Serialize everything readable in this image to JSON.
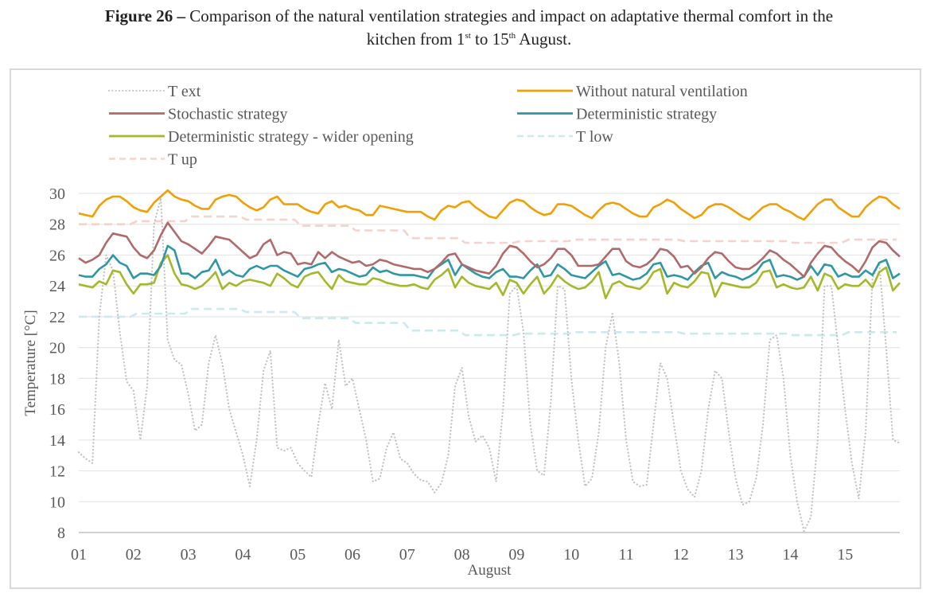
{
  "caption": {
    "label": "Figure 26 –",
    "text_before_1": " Comparison of the natural ventilation strategies and impact on adaptative thermal comfort in the",
    "line2_a": "kitchen from 1",
    "sup1": "st",
    "line2_b": " to 15",
    "sup2": "th",
    "line2_c": " August."
  },
  "chart_data": {
    "type": "line",
    "title": "Comparison of the natural ventilation strategies and impact on adaptative thermal comfort in the kitchen from 1st to 15th August.",
    "xlabel": "August",
    "ylabel": "Temperature [°C]",
    "ylim": [
      8,
      30
    ],
    "yticks": [
      "8",
      "10",
      "12",
      "14",
      "16",
      "18",
      "20",
      "22",
      "24",
      "26",
      "28",
      "30"
    ],
    "xlim_days": [
      1,
      16
    ],
    "xticks": [
      "01",
      "02",
      "03",
      "04",
      "05",
      "06",
      "07",
      "08",
      "09",
      "10",
      "11",
      "12",
      "13",
      "14",
      "15"
    ],
    "grid": true,
    "legend_position": "top",
    "sample_interval_hours": 3,
    "series": [
      {
        "name": "T ext",
        "color": "#bfbfbf",
        "style": "dotted",
        "values": [
          13.2,
          12.8,
          12.5,
          22.0,
          26.0,
          25.0,
          21.0,
          17.8,
          17.2,
          14.0,
          17.5,
          28.0,
          29.7,
          20.5,
          19.2,
          18.9,
          17.0,
          14.6,
          15.0,
          19.0,
          20.8,
          18.9,
          16.0,
          14.5,
          13.0,
          11.0,
          14.0,
          18.5,
          19.8,
          13.5,
          13.3,
          13.5,
          12.5,
          12.0,
          11.6,
          15.0,
          17.7,
          16.0,
          20.5,
          17.5,
          18.0,
          16.0,
          14.0,
          11.3,
          11.5,
          13.5,
          14.5,
          12.8,
          12.5,
          11.8,
          11.4,
          11.3,
          10.6,
          11.2,
          13.0,
          17.5,
          18.7,
          15.5,
          13.9,
          14.3,
          13.5,
          11.3,
          16.0,
          23.5,
          24.0,
          21.0,
          15.0,
          12.0,
          11.7,
          16.5,
          24.0,
          23.8,
          18.0,
          14.0,
          11.0,
          11.5,
          14.5,
          20.0,
          22.2,
          19.0,
          14.0,
          11.3,
          11.0,
          11.1,
          15.0,
          19.0,
          18.0,
          15.0,
          12.0,
          10.8,
          10.3,
          12.0,
          16.0,
          18.5,
          18.0,
          14.5,
          11.5,
          9.8,
          10.0,
          11.5,
          15.0,
          20.5,
          20.8,
          18.0,
          13.0,
          10.0,
          8.1,
          9.0,
          14.0,
          24.0,
          24.0,
          20.0,
          16.0,
          12.5,
          10.2,
          14.5,
          24.5,
          25.5,
          20.0,
          14.0,
          13.8
        ]
      },
      {
        "name": "Without natural ventilation",
        "color": "#f29f05",
        "style": "solid",
        "values": [
          28.7,
          28.6,
          28.5,
          29.2,
          29.6,
          29.8,
          29.8,
          29.5,
          29.1,
          28.9,
          28.8,
          29.4,
          29.8,
          30.2,
          29.8,
          29.6,
          29.5,
          29.2,
          29.0,
          29.0,
          29.6,
          29.8,
          29.9,
          29.8,
          29.4,
          29.1,
          28.9,
          29.1,
          29.6,
          29.8,
          29.3,
          29.3,
          29.3,
          29.0,
          28.8,
          28.7,
          29.3,
          29.5,
          29.1,
          29.2,
          29.0,
          28.9,
          28.6,
          28.6,
          29.2,
          29.1,
          29.0,
          28.9,
          28.8,
          28.8,
          28.8,
          28.5,
          28.3,
          28.9,
          29.2,
          29.1,
          29.4,
          29.5,
          29.1,
          28.8,
          28.5,
          28.4,
          28.9,
          29.4,
          29.6,
          29.5,
          29.1,
          28.8,
          28.6,
          28.7,
          29.3,
          29.3,
          29.2,
          28.9,
          28.6,
          28.4,
          28.9,
          29.3,
          29.4,
          29.3,
          29.0,
          28.7,
          28.5,
          28.5,
          29.1,
          29.3,
          29.6,
          29.4,
          29.0,
          28.7,
          28.4,
          28.6,
          29.1,
          29.3,
          29.3,
          29.1,
          28.8,
          28.5,
          28.3,
          28.7,
          29.1,
          29.3,
          29.3,
          29.0,
          28.8,
          28.5,
          28.3,
          28.8,
          29.3,
          29.6,
          29.6,
          29.1,
          28.8,
          28.5,
          28.5,
          29.1,
          29.5,
          29.8,
          29.7,
          29.3,
          29.0
        ]
      },
      {
        "name": "Stochastic strategy",
        "color": "#b06a6a",
        "style": "solid",
        "values": [
          25.8,
          25.5,
          25.7,
          26.0,
          26.8,
          27.4,
          27.3,
          27.2,
          26.5,
          26.0,
          25.8,
          26.3,
          27.3,
          28.1,
          27.5,
          26.9,
          26.7,
          26.4,
          26.1,
          26.6,
          27.2,
          27.1,
          27.0,
          26.6,
          26.2,
          25.8,
          26.0,
          26.7,
          27.0,
          26.0,
          26.2,
          26.1,
          25.4,
          25.5,
          25.4,
          26.2,
          25.8,
          26.2,
          25.9,
          25.7,
          25.5,
          25.6,
          25.3,
          25.4,
          25.7,
          25.6,
          25.4,
          25.3,
          25.2,
          25.1,
          25.1,
          24.9,
          25.1,
          25.5,
          26.0,
          26.1,
          25.4,
          25.2,
          25.0,
          24.9,
          24.8,
          25.3,
          26.1,
          26.6,
          26.5,
          26.1,
          25.6,
          25.2,
          25.4,
          25.8,
          26.4,
          26.4,
          26.0,
          25.3,
          25.3,
          25.3,
          25.4,
          25.9,
          26.4,
          26.4,
          25.6,
          25.3,
          25.2,
          25.4,
          25.8,
          26.4,
          26.3,
          25.9,
          25.2,
          25.3,
          24.8,
          25.2,
          25.8,
          26.2,
          26.1,
          25.6,
          25.2,
          25.1,
          25.1,
          25.4,
          25.8,
          26.3,
          26.1,
          25.7,
          25.4,
          25.0,
          24.6,
          25.5,
          26.1,
          26.6,
          26.5,
          26.0,
          25.6,
          25.3,
          24.9,
          25.6,
          26.5,
          26.9,
          26.8,
          26.3,
          25.9
        ]
      },
      {
        "name": "Deterministic strategy",
        "color": "#2e97a3",
        "style": "solid",
        "values": [
          24.7,
          24.6,
          24.6,
          25.1,
          25.4,
          26.0,
          25.5,
          25.3,
          24.5,
          24.8,
          24.8,
          24.7,
          25.3,
          26.6,
          26.3,
          24.8,
          24.8,
          24.5,
          24.9,
          25.0,
          25.7,
          24.7,
          25.0,
          24.7,
          24.6,
          25.1,
          25.3,
          25.1,
          25.3,
          25.3,
          25.0,
          24.8,
          24.6,
          25.1,
          25.2,
          25.4,
          25.5,
          24.9,
          25.1,
          25.0,
          24.8,
          24.6,
          24.7,
          25.2,
          24.9,
          25.0,
          24.8,
          24.7,
          24.7,
          24.7,
          24.6,
          24.5,
          25.1,
          25.4,
          25.7,
          24.7,
          25.4,
          25.1,
          24.8,
          24.6,
          24.5,
          24.9,
          25.1,
          24.6,
          24.6,
          24.5,
          25.0,
          25.4,
          24.6,
          24.7,
          25.4,
          25.1,
          24.7,
          24.6,
          24.5,
          24.9,
          25.3,
          25.6,
          24.7,
          24.8,
          24.6,
          24.4,
          24.5,
          24.8,
          25.4,
          25.5,
          24.6,
          24.7,
          24.6,
          24.4,
          24.9,
          25.3,
          25.5,
          24.5,
          24.9,
          24.7,
          24.6,
          24.4,
          24.6,
          24.9,
          25.5,
          25.7,
          24.6,
          24.7,
          24.6,
          24.4,
          24.6,
          25.3,
          24.7,
          25.4,
          25.3,
          24.6,
          24.8,
          24.6,
          24.6,
          25.0,
          24.7,
          25.5,
          25.7,
          24.5,
          24.8
        ]
      },
      {
        "name": "Deterministic strategy - wider opening",
        "color": "#a5b82a",
        "style": "solid",
        "values": [
          24.1,
          24.0,
          23.9,
          24.3,
          24.1,
          25.0,
          24.9,
          24.1,
          23.5,
          24.1,
          24.1,
          24.2,
          25.5,
          26.0,
          24.8,
          24.1,
          24.0,
          23.8,
          24.0,
          24.4,
          24.9,
          23.8,
          24.2,
          24.0,
          24.3,
          24.4,
          24.3,
          24.2,
          24.0,
          24.8,
          24.5,
          24.1,
          23.9,
          24.6,
          24.8,
          24.9,
          24.3,
          23.8,
          24.7,
          24.3,
          24.2,
          24.1,
          24.1,
          24.5,
          24.4,
          24.2,
          24.1,
          24.0,
          24.0,
          24.1,
          23.9,
          23.8,
          24.4,
          24.7,
          25.1,
          23.9,
          24.6,
          24.2,
          24.0,
          23.9,
          23.8,
          24.2,
          23.4,
          24.4,
          24.2,
          23.5,
          24.1,
          24.6,
          23.5,
          24.0,
          24.7,
          24.3,
          24.0,
          23.8,
          23.9,
          24.3,
          24.9,
          23.2,
          24.1,
          24.3,
          24.0,
          23.9,
          23.8,
          24.2,
          24.9,
          25.1,
          23.5,
          24.2,
          24.0,
          23.9,
          24.3,
          24.9,
          24.8,
          23.3,
          24.2,
          24.1,
          24.0,
          23.9,
          23.9,
          24.2,
          24.9,
          25.0,
          23.9,
          24.1,
          23.9,
          23.8,
          23.9,
          24.6,
          23.7,
          24.8,
          24.6,
          23.8,
          24.1,
          24.0,
          24.0,
          24.4,
          23.9,
          24.9,
          25.2,
          23.7,
          24.2
        ]
      },
      {
        "name": "T low",
        "color": "#cbe9ef",
        "style": "dashed",
        "daily_values": [
          22.0,
          22.2,
          22.5,
          22.3,
          21.9,
          21.6,
          21.1,
          20.8,
          20.9,
          21.0,
          21.0,
          20.9,
          20.9,
          20.8,
          21.0
        ]
      },
      {
        "name": "T up",
        "color": "#f6d2cc",
        "style": "dashed",
        "daily_values": [
          28.0,
          28.2,
          28.5,
          28.3,
          27.9,
          27.6,
          27.1,
          26.8,
          26.9,
          27.0,
          27.0,
          26.9,
          26.9,
          26.8,
          27.0
        ]
      }
    ]
  }
}
